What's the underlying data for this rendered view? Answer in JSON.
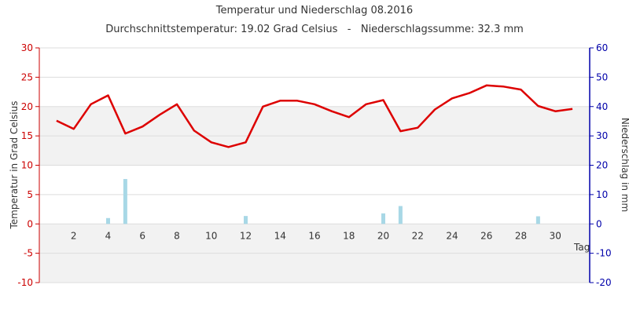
{
  "chart_data": {
    "type": "line",
    "title": "Temperatur und Niederschlag 08.2016",
    "subtitle": "Durchschnittstemperatur: 19.02 Grad Celsius   -   Niederschlagssumme: 32.3 mm",
    "xlabel": "Tag",
    "ylabel_left": "Temperatur in Grad Celsius",
    "ylabel_right": "Niederschlag in mm",
    "x": [
      1,
      2,
      3,
      4,
      5,
      6,
      7,
      8,
      9,
      10,
      11,
      12,
      13,
      14,
      15,
      16,
      17,
      18,
      19,
      20,
      21,
      22,
      23,
      24,
      25,
      26,
      27,
      28,
      29,
      30,
      31
    ],
    "xlim": [
      0,
      32
    ],
    "xticks": [
      2,
      4,
      6,
      8,
      10,
      12,
      14,
      16,
      18,
      20,
      22,
      24,
      26,
      28,
      30
    ],
    "ylim_left": [
      -10,
      30
    ],
    "yticks_left": [
      -10,
      -5,
      0,
      5,
      10,
      15,
      20,
      25,
      30
    ],
    "ylim_right": [
      -20,
      60
    ],
    "yticks_right": [
      -20,
      -10,
      0,
      10,
      20,
      30,
      40,
      50,
      60
    ],
    "grid": true,
    "series": [
      {
        "name": "Temperatur",
        "type": "line",
        "axis": "left",
        "color": "#dd0000",
        "values": [
          17.6,
          16.2,
          20.4,
          21.9,
          15.4,
          16.6,
          18.6,
          20.4,
          15.9,
          13.9,
          13.1,
          13.9,
          20.0,
          21.0,
          21.0,
          20.4,
          19.2,
          18.2,
          20.4,
          21.1,
          15.8,
          16.4,
          19.5,
          21.4,
          22.3,
          23.6,
          23.4,
          22.9,
          20.1,
          19.2,
          19.6
        ]
      },
      {
        "name": "Niederschlag",
        "type": "bar",
        "axis": "right",
        "color": "#a8d8e6",
        "values": [
          0,
          0,
          0,
          2.0,
          15.3,
          0,
          0,
          0,
          0,
          0,
          0,
          2.7,
          0,
          0,
          0,
          0,
          0,
          0,
          0,
          3.6,
          6.1,
          0,
          0,
          0,
          0,
          0,
          0,
          0,
          2.6,
          0,
          0
        ]
      }
    ]
  }
}
